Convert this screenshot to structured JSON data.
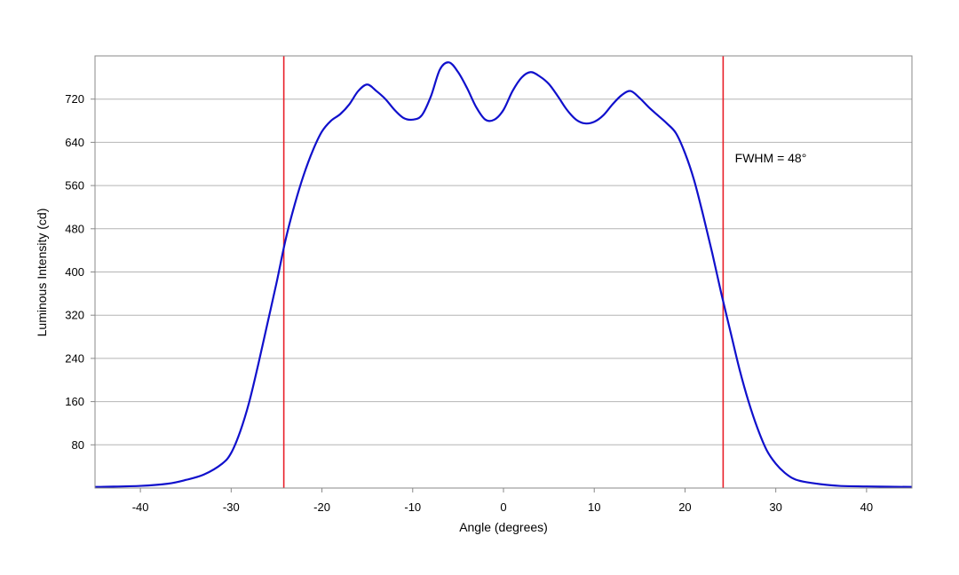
{
  "chart_data": {
    "type": "line",
    "title": "",
    "xlabel": "Angle (degrees)",
    "ylabel": "Luminous Intensity (cd)",
    "xlim": [
      -45,
      45
    ],
    "ylim": [
      0,
      800
    ],
    "x_ticks": [
      -40,
      -30,
      -20,
      -10,
      0,
      10,
      20,
      30,
      40
    ],
    "x_tick_labels": [
      "-40",
      "-30",
      "-20",
      "-10",
      "0",
      "10",
      "20",
      "30",
      "40"
    ],
    "y_ticks": [
      80,
      160,
      240,
      320,
      400,
      480,
      560,
      640,
      720
    ],
    "y_tick_labels": [
      "80",
      "160",
      "240",
      "320",
      "400",
      "480",
      "560",
      "640",
      "720"
    ],
    "grid": "horizontal",
    "legend": "none",
    "line_color": "#1010cc",
    "marker_color": "#e8202a",
    "series": [
      {
        "x": [
          -45,
          -40,
          -37,
          -35,
          -33,
          -31,
          -30,
          -29,
          -28,
          -27,
          -26,
          -25,
          -24,
          -23,
          -22,
          -21,
          -20,
          -19,
          -18,
          -17,
          -16,
          -15,
          -14,
          -13,
          -12,
          -11,
          -10,
          -9,
          -8,
          -7,
          -6,
          -5,
          -4,
          -3,
          -2,
          -1,
          0,
          1,
          2,
          3,
          4,
          5,
          6,
          7,
          8,
          9,
          10,
          11,
          12,
          13,
          14,
          15,
          16,
          17,
          18,
          19,
          20,
          21,
          22,
          23,
          24,
          25,
          26,
          27,
          28,
          29,
          30,
          31,
          32,
          33,
          35,
          37,
          40,
          45
        ],
        "y": [
          2,
          4,
          8,
          15,
          25,
          45,
          65,
          105,
          160,
          230,
          305,
          380,
          460,
          525,
          580,
          625,
          660,
          680,
          692,
          710,
          735,
          747,
          735,
          720,
          700,
          685,
          682,
          690,
          725,
          775,
          788,
          770,
          740,
          705,
          682,
          682,
          700,
          735,
          760,
          770,
          762,
          748,
          725,
          700,
          682,
          675,
          678,
          690,
          710,
          727,
          735,
          722,
          705,
          690,
          675,
          657,
          620,
          570,
          505,
          435,
          360,
          290,
          220,
          160,
          110,
          70,
          45,
          28,
          17,
          12,
          7,
          4,
          3,
          2
        ]
      }
    ],
    "markers": [
      {
        "x": -24.2
      },
      {
        "x": 24.2
      }
    ],
    "annotation": {
      "text": "FWHM = 48°",
      "x": 25.5,
      "y": 600
    }
  }
}
